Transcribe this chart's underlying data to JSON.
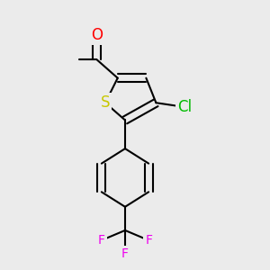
{
  "background_color": "#ebebeb",
  "bond_color": "#000000",
  "bond_width": 1.5,
  "atom_colors": {
    "O": "#ff0000",
    "S": "#c8c800",
    "Cl": "#00bb00",
    "F": "#ee00ee",
    "C": "#000000"
  },
  "font_size_atom": 11,
  "figsize": [
    3.0,
    3.0
  ],
  "dpi": 100
}
